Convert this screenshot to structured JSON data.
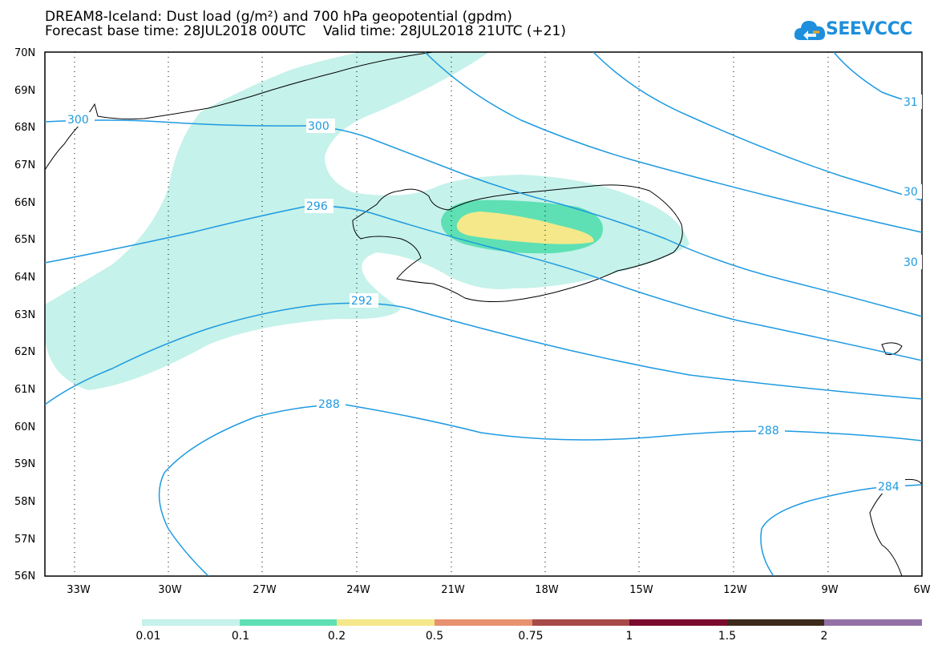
{
  "title": {
    "line1": "DREAM8-Iceland: Dust load (g/m²) and 700 hPa geopotential (gpdm)",
    "line2": "Forecast base time: 28JUL2018 00UTC    Valid time: 28JUL2018 21UTC (+21)"
  },
  "logo": {
    "text": "SEEVCCC",
    "icon": "cloud-icon",
    "color": "#1e8fdc"
  },
  "lat_labels": [
    "70N",
    "69N",
    "68N",
    "67N",
    "66N",
    "65N",
    "64N",
    "63N",
    "62N",
    "61N",
    "60N",
    "59N",
    "58N",
    "57N",
    "56N"
  ],
  "lon_labels": [
    "33W",
    "30W",
    "27W",
    "24W",
    "21W",
    "18W",
    "15W",
    "12W",
    "9W",
    "6W"
  ],
  "contour_labels": [
    "300",
    "300",
    "296",
    "292",
    "288",
    "288",
    "284",
    "31",
    "30",
    "30"
  ],
  "colorbar": {
    "colors": [
      "#c5f2ea",
      "#5ee0b4",
      "#f5e88a",
      "#e8916e",
      "#a84b48",
      "#7a0b2c",
      "#3d2a1a",
      "#9371a6"
    ],
    "labels": [
      "0.01",
      "0.1",
      "0.2",
      "0.5",
      "0.75",
      "1",
      "1.5",
      "2"
    ]
  },
  "map_colors": {
    "contour": "#1e9ae0",
    "dust_low": "#c5f2ea",
    "dust_mid": "#5ee0b4",
    "dust_high": "#f5e88a",
    "coast": "#000000"
  }
}
